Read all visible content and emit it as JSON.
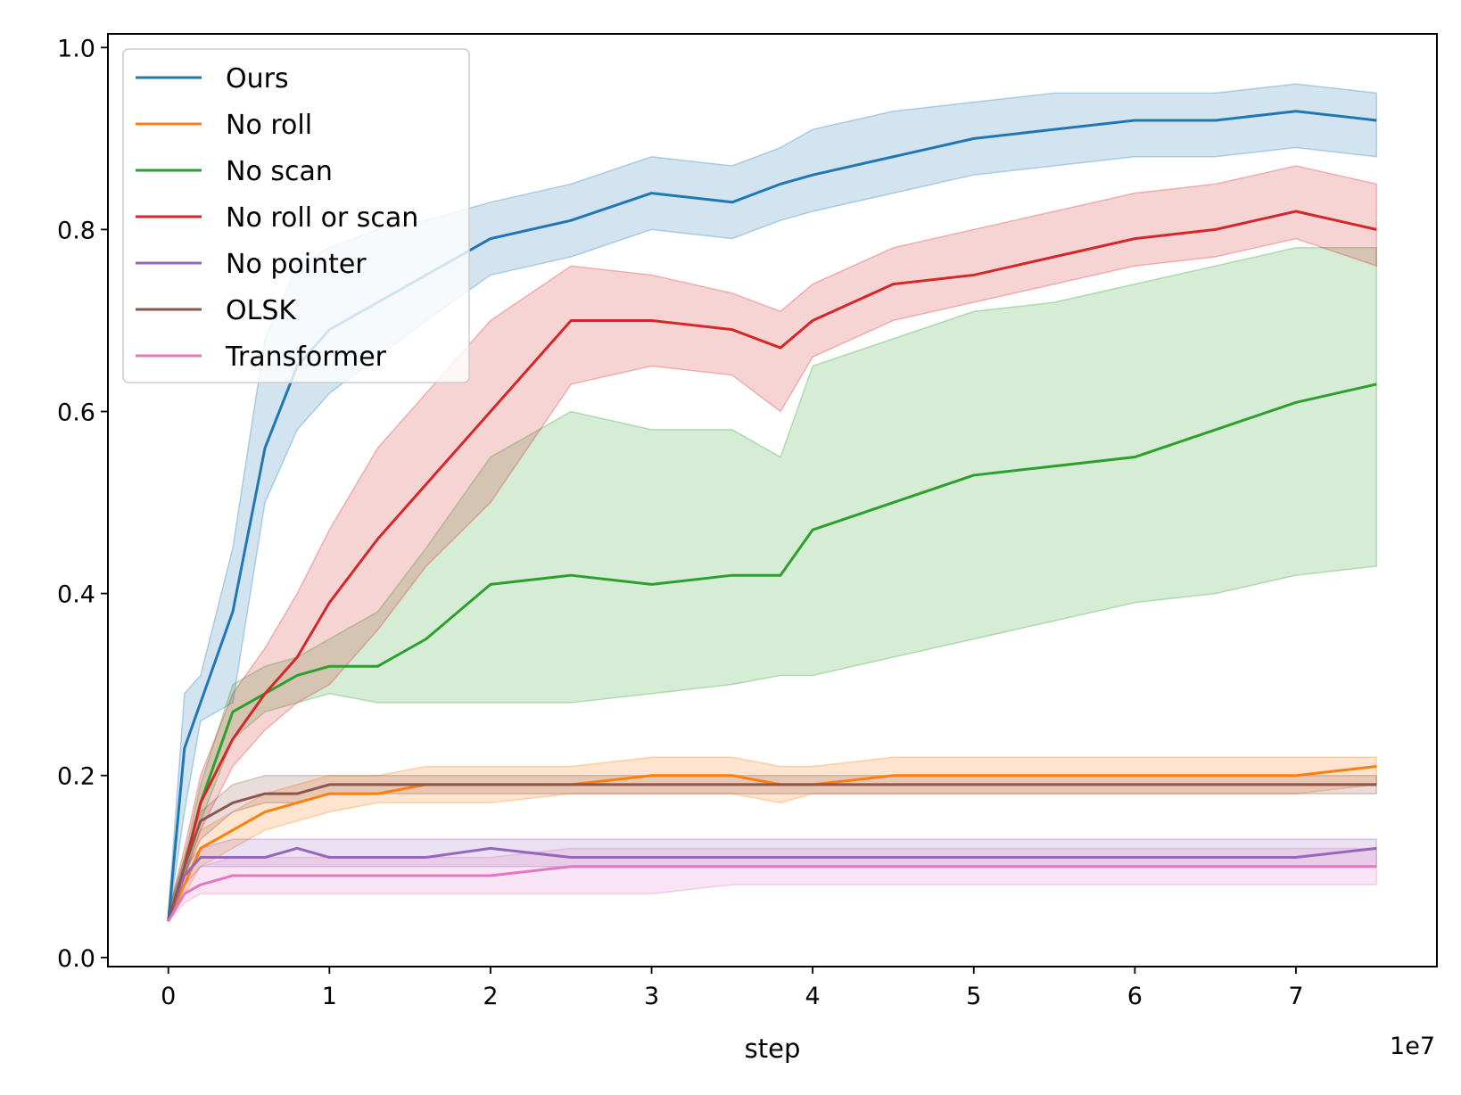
{
  "chart_data": {
    "type": "line",
    "xlabel": "step",
    "ylabel": "",
    "x_offset_label": "1e7",
    "xlim": [
      -3750000,
      78750000
    ],
    "ylim": [
      -0.01,
      1.015
    ],
    "xticks": [
      0,
      10000000,
      20000000,
      30000000,
      40000000,
      50000000,
      60000000,
      70000000
    ],
    "xtick_labels": [
      "0",
      "1",
      "2",
      "3",
      "4",
      "5",
      "6",
      "7"
    ],
    "yticks": [
      0.0,
      0.2,
      0.4,
      0.6,
      0.8,
      1.0
    ],
    "ytick_labels": [
      "0.0",
      "0.2",
      "0.4",
      "0.6",
      "0.8",
      "1.0"
    ],
    "grid": false,
    "legend_position": "top-left",
    "x": [
      0,
      1000000,
      2000000,
      4000000,
      6000000,
      8000000,
      10000000,
      13000000,
      16000000,
      20000000,
      25000000,
      30000000,
      35000000,
      38000000,
      40000000,
      45000000,
      50000000,
      55000000,
      60000000,
      65000000,
      70000000,
      75000000
    ],
    "series": [
      {
        "name": "Ours",
        "color": "#1f77b4",
        "values": [
          0.04,
          0.23,
          0.28,
          0.38,
          0.56,
          0.65,
          0.69,
          0.72,
          0.75,
          0.79,
          0.81,
          0.84,
          0.83,
          0.85,
          0.86,
          0.88,
          0.9,
          0.91,
          0.92,
          0.92,
          0.93,
          0.92
        ],
        "lower": [
          0.04,
          0.16,
          0.26,
          0.28,
          0.5,
          0.58,
          0.62,
          0.66,
          0.7,
          0.75,
          0.77,
          0.8,
          0.79,
          0.81,
          0.82,
          0.84,
          0.86,
          0.87,
          0.88,
          0.88,
          0.89,
          0.88
        ],
        "upper": [
          0.05,
          0.29,
          0.31,
          0.45,
          0.68,
          0.76,
          0.78,
          0.8,
          0.81,
          0.83,
          0.85,
          0.88,
          0.87,
          0.89,
          0.91,
          0.93,
          0.94,
          0.95,
          0.95,
          0.95,
          0.96,
          0.95
        ]
      },
      {
        "name": "No roll",
        "color": "#ff7f0e",
        "values": [
          0.04,
          0.08,
          0.12,
          0.14,
          0.16,
          0.17,
          0.18,
          0.18,
          0.19,
          0.19,
          0.19,
          0.2,
          0.2,
          0.19,
          0.19,
          0.2,
          0.2,
          0.2,
          0.2,
          0.2,
          0.2,
          0.21
        ],
        "lower": [
          0.04,
          0.07,
          0.1,
          0.12,
          0.14,
          0.15,
          0.16,
          0.17,
          0.17,
          0.17,
          0.18,
          0.18,
          0.18,
          0.17,
          0.18,
          0.18,
          0.18,
          0.18,
          0.18,
          0.18,
          0.18,
          0.19
        ],
        "upper": [
          0.05,
          0.09,
          0.14,
          0.16,
          0.18,
          0.19,
          0.2,
          0.2,
          0.21,
          0.21,
          0.21,
          0.22,
          0.22,
          0.21,
          0.21,
          0.22,
          0.22,
          0.22,
          0.22,
          0.22,
          0.22,
          0.22
        ]
      },
      {
        "name": "No scan",
        "color": "#2ca02c",
        "values": [
          0.04,
          0.1,
          0.17,
          0.27,
          0.29,
          0.31,
          0.32,
          0.32,
          0.35,
          0.41,
          0.42,
          0.41,
          0.42,
          0.42,
          0.47,
          0.5,
          0.53,
          0.54,
          0.55,
          0.58,
          0.61,
          0.63
        ],
        "lower": [
          0.04,
          0.09,
          0.15,
          0.24,
          0.27,
          0.28,
          0.29,
          0.28,
          0.28,
          0.28,
          0.28,
          0.29,
          0.3,
          0.31,
          0.31,
          0.33,
          0.35,
          0.37,
          0.39,
          0.4,
          0.42,
          0.43
        ],
        "upper": [
          0.05,
          0.11,
          0.19,
          0.3,
          0.32,
          0.33,
          0.35,
          0.38,
          0.45,
          0.55,
          0.6,
          0.58,
          0.58,
          0.55,
          0.65,
          0.68,
          0.71,
          0.72,
          0.74,
          0.76,
          0.78,
          0.78
        ]
      },
      {
        "name": "No roll or scan",
        "color": "#d62728",
        "values": [
          0.04,
          0.1,
          0.17,
          0.24,
          0.29,
          0.33,
          0.39,
          0.46,
          0.52,
          0.6,
          0.7,
          0.7,
          0.69,
          0.67,
          0.7,
          0.74,
          0.75,
          0.77,
          0.79,
          0.8,
          0.82,
          0.8
        ],
        "lower": [
          0.04,
          0.09,
          0.14,
          0.21,
          0.25,
          0.28,
          0.3,
          0.36,
          0.43,
          0.5,
          0.63,
          0.65,
          0.64,
          0.6,
          0.66,
          0.7,
          0.72,
          0.74,
          0.76,
          0.77,
          0.79,
          0.76
        ],
        "upper": [
          0.05,
          0.12,
          0.2,
          0.29,
          0.34,
          0.4,
          0.47,
          0.56,
          0.62,
          0.7,
          0.76,
          0.75,
          0.73,
          0.71,
          0.74,
          0.78,
          0.8,
          0.82,
          0.84,
          0.85,
          0.87,
          0.85
        ]
      },
      {
        "name": "No pointer",
        "color": "#9467bd",
        "values": [
          0.04,
          0.09,
          0.11,
          0.11,
          0.11,
          0.12,
          0.11,
          0.11,
          0.11,
          0.12,
          0.11,
          0.11,
          0.11,
          0.11,
          0.11,
          0.11,
          0.11,
          0.11,
          0.11,
          0.11,
          0.11,
          0.12
        ],
        "lower": [
          0.04,
          0.08,
          0.1,
          0.1,
          0.1,
          0.1,
          0.1,
          0.1,
          0.1,
          0.1,
          0.1,
          0.1,
          0.1,
          0.1,
          0.1,
          0.1,
          0.1,
          0.1,
          0.1,
          0.1,
          0.1,
          0.1
        ],
        "upper": [
          0.05,
          0.1,
          0.12,
          0.13,
          0.13,
          0.13,
          0.13,
          0.13,
          0.13,
          0.13,
          0.13,
          0.13,
          0.13,
          0.13,
          0.13,
          0.13,
          0.13,
          0.13,
          0.13,
          0.13,
          0.13,
          0.13
        ]
      },
      {
        "name": "OLSK",
        "color": "#8c564b",
        "values": [
          0.04,
          0.1,
          0.15,
          0.17,
          0.18,
          0.18,
          0.19,
          0.19,
          0.19,
          0.19,
          0.19,
          0.19,
          0.19,
          0.19,
          0.19,
          0.19,
          0.19,
          0.19,
          0.19,
          0.19,
          0.19,
          0.19
        ],
        "lower": [
          0.04,
          0.09,
          0.13,
          0.16,
          0.17,
          0.17,
          0.18,
          0.18,
          0.18,
          0.18,
          0.18,
          0.18,
          0.18,
          0.18,
          0.18,
          0.18,
          0.18,
          0.18,
          0.18,
          0.18,
          0.18,
          0.18
        ],
        "upper": [
          0.05,
          0.11,
          0.16,
          0.19,
          0.2,
          0.2,
          0.2,
          0.2,
          0.2,
          0.2,
          0.2,
          0.2,
          0.2,
          0.2,
          0.2,
          0.2,
          0.2,
          0.2,
          0.2,
          0.2,
          0.2,
          0.2
        ]
      },
      {
        "name": "Transformer",
        "color": "#e377c2",
        "values": [
          0.04,
          0.07,
          0.08,
          0.09,
          0.09,
          0.09,
          0.09,
          0.09,
          0.09,
          0.09,
          0.1,
          0.1,
          0.1,
          0.1,
          0.1,
          0.1,
          0.1,
          0.1,
          0.1,
          0.1,
          0.1,
          0.1
        ],
        "lower": [
          0.04,
          0.06,
          0.07,
          0.07,
          0.07,
          0.07,
          0.07,
          0.07,
          0.07,
          0.07,
          0.07,
          0.07,
          0.08,
          0.08,
          0.08,
          0.08,
          0.08,
          0.08,
          0.08,
          0.08,
          0.08,
          0.08
        ],
        "upper": [
          0.05,
          0.08,
          0.1,
          0.11,
          0.11,
          0.11,
          0.11,
          0.11,
          0.11,
          0.11,
          0.12,
          0.12,
          0.12,
          0.12,
          0.12,
          0.12,
          0.12,
          0.12,
          0.12,
          0.12,
          0.12,
          0.12
        ]
      }
    ]
  }
}
